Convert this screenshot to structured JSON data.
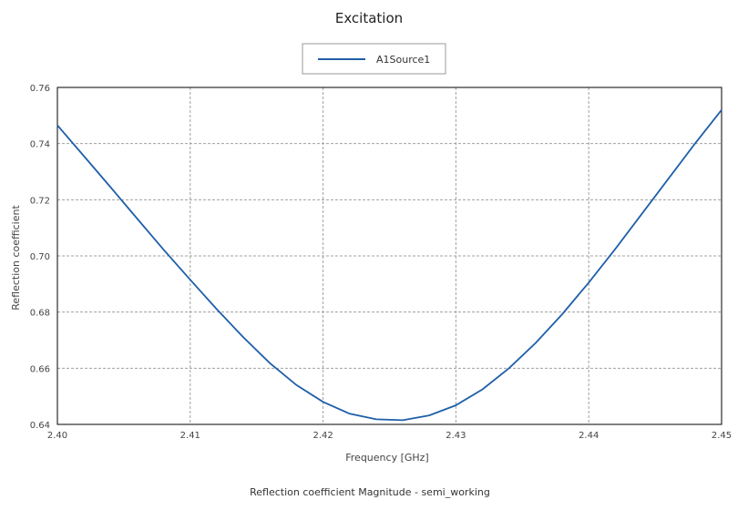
{
  "chart_data": {
    "type": "line",
    "title": "Excitation",
    "caption": "Reflection coefficient Magnitude - semi_working",
    "xlabel": "Frequency [GHz]",
    "ylabel": "Reflection coefficient",
    "xlim": [
      2.4,
      2.45
    ],
    "ylim": [
      0.64,
      0.76
    ],
    "xticks": [
      "2.40",
      "2.41",
      "2.42",
      "2.43",
      "2.44",
      "2.45"
    ],
    "yticks": [
      "0.64",
      "0.66",
      "0.68",
      "0.70",
      "0.72",
      "0.74",
      "0.76"
    ],
    "grid": true,
    "legend_position": "top-center",
    "series": [
      {
        "name": "A1Source1",
        "color": "#1f5fa8",
        "x": [
          2.4,
          2.402,
          2.404,
          2.406,
          2.408,
          2.41,
          2.412,
          2.414,
          2.416,
          2.418,
          2.42,
          2.422,
          2.424,
          2.426,
          2.428,
          2.43,
          2.432,
          2.434,
          2.436,
          2.438,
          2.44,
          2.442,
          2.444,
          2.446,
          2.448,
          2.45
        ],
        "y": [
          0.7465,
          0.7355,
          0.7245,
          0.7133,
          0.7022,
          0.6915,
          0.681,
          0.671,
          0.6618,
          0.654,
          0.648,
          0.6438,
          0.6418,
          0.6415,
          0.6432,
          0.6468,
          0.6525,
          0.66,
          0.669,
          0.6792,
          0.6905,
          0.7025,
          0.715,
          0.7275,
          0.74,
          0.752
        ]
      }
    ]
  }
}
